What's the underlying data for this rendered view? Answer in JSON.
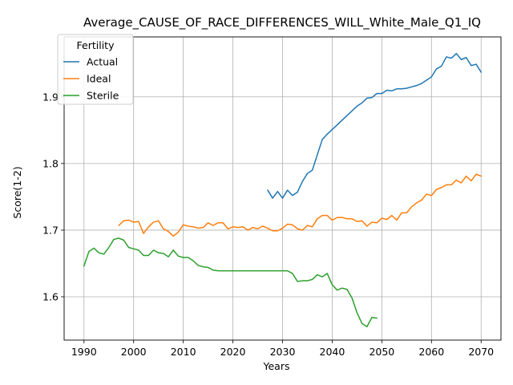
{
  "chart_data": {
    "type": "line",
    "title": "Average_CAUSE_OF_RACE_DIFFERENCES_WILL_White_Male_Q1_IQ",
    "xlabel": "Years",
    "ylabel": "Score(1-2)",
    "xlim": [
      1986,
      2074
    ],
    "ylim": [
      1.535,
      1.99
    ],
    "xticks": [
      1990,
      2000,
      2010,
      2020,
      2030,
      2040,
      2050,
      2060,
      2070
    ],
    "yticks": [
      1.6,
      1.7,
      1.8,
      1.9
    ],
    "grid": true,
    "legend": {
      "title": "Fertility",
      "position": "top-left"
    },
    "series": [
      {
        "name": "Actual",
        "color": "#1f77b4",
        "x": [
          2027,
          2028,
          2029,
          2030,
          2031,
          2032,
          2033,
          2034,
          2035,
          2036,
          2037,
          2038,
          2039,
          2040,
          2041,
          2042,
          2043,
          2044,
          2045,
          2046,
          2047,
          2048,
          2049,
          2050,
          2051,
          2052,
          2053,
          2054,
          2055,
          2056,
          2057,
          2058,
          2059,
          2060,
          2061,
          2062,
          2063,
          2064,
          2065,
          2066,
          2067,
          2068,
          2069,
          2070
        ],
        "y": [
          1.76,
          1.748,
          1.758,
          1.748,
          1.76,
          1.752,
          1.757,
          1.773,
          1.785,
          1.79,
          1.813,
          1.836,
          1.844,
          1.851,
          1.858,
          1.865,
          1.872,
          1.879,
          1.886,
          1.891,
          1.898,
          1.899,
          1.905,
          1.905,
          1.91,
          1.909,
          1.912,
          1.912,
          1.913,
          1.915,
          1.917,
          1.92,
          1.925,
          1.93,
          1.942,
          1.946,
          1.96,
          1.958,
          1.965,
          1.956,
          1.959,
          1.947,
          1.949,
          1.937
        ]
      },
      {
        "name": "Ideal",
        "color": "#ff7f0e",
        "x": [
          1997,
          1998,
          1999,
          2000,
          2001,
          2002,
          2003,
          2004,
          2005,
          2006,
          2007,
          2008,
          2009,
          2010,
          2011,
          2012,
          2013,
          2014,
          2015,
          2016,
          2017,
          2018,
          2019,
          2020,
          2021,
          2022,
          2023,
          2024,
          2025,
          2026,
          2027,
          2028,
          2029,
          2030,
          2031,
          2032,
          2033,
          2034,
          2035,
          2036,
          2037,
          2038,
          2039,
          2040,
          2041,
          2042,
          2043,
          2044,
          2045,
          2046,
          2047,
          2048,
          2049,
          2050,
          2051,
          2052,
          2053,
          2054,
          2055,
          2056,
          2057,
          2058,
          2059,
          2060,
          2061,
          2062,
          2063,
          2064,
          2065,
          2066,
          2067,
          2068,
          2069,
          2070
        ],
        "y": [
          1.707,
          1.714,
          1.715,
          1.712,
          1.713,
          1.695,
          1.705,
          1.712,
          1.714,
          1.702,
          1.698,
          1.691,
          1.697,
          1.708,
          1.706,
          1.705,
          1.703,
          1.704,
          1.711,
          1.707,
          1.711,
          1.711,
          1.702,
          1.705,
          1.704,
          1.705,
          1.7,
          1.704,
          1.702,
          1.706,
          1.703,
          1.699,
          1.699,
          1.703,
          1.709,
          1.708,
          1.702,
          1.7,
          1.707,
          1.705,
          1.717,
          1.722,
          1.722,
          1.715,
          1.719,
          1.719,
          1.717,
          1.717,
          1.713,
          1.714,
          1.706,
          1.712,
          1.711,
          1.718,
          1.716,
          1.722,
          1.715,
          1.726,
          1.726,
          1.735,
          1.741,
          1.745,
          1.754,
          1.752,
          1.761,
          1.764,
          1.768,
          1.768,
          1.775,
          1.771,
          1.781,
          1.774,
          1.784,
          1.781
        ]
      },
      {
        "name": "Sterile",
        "color": "#2ca02c",
        "x": [
          1990,
          1991,
          1992,
          1993,
          1994,
          1995,
          1996,
          1997,
          1998,
          1999,
          2000,
          2001,
          2002,
          2003,
          2004,
          2005,
          2006,
          2007,
          2008,
          2009,
          2010,
          2011,
          2012,
          2013,
          2014,
          2015,
          2016,
          2017,
          2018,
          2019,
          2020,
          2021,
          2022,
          2023,
          2024,
          2025,
          2026,
          2027,
          2028,
          2029,
          2030,
          2031,
          2032,
          2033,
          2034,
          2035,
          2036,
          2037,
          2038,
          2039,
          2040,
          2041,
          2042,
          2043,
          2044,
          2045,
          2046,
          2047,
          2048,
          2049
        ],
        "y": [
          1.646,
          1.668,
          1.673,
          1.666,
          1.664,
          1.674,
          1.686,
          1.688,
          1.685,
          1.674,
          1.672,
          1.67,
          1.662,
          1.662,
          1.67,
          1.666,
          1.665,
          1.66,
          1.67,
          1.661,
          1.659,
          1.659,
          1.654,
          1.647,
          1.645,
          1.644,
          1.64,
          1.639,
          1.639,
          1.639,
          1.639,
          1.639,
          1.639,
          1.639,
          1.639,
          1.639,
          1.639,
          1.639,
          1.639,
          1.639,
          1.639,
          1.639,
          1.635,
          1.623,
          1.624,
          1.624,
          1.626,
          1.633,
          1.63,
          1.635,
          1.618,
          1.61,
          1.613,
          1.611,
          1.598,
          1.576,
          1.56,
          1.555,
          1.569,
          1.568
        ]
      }
    ]
  }
}
